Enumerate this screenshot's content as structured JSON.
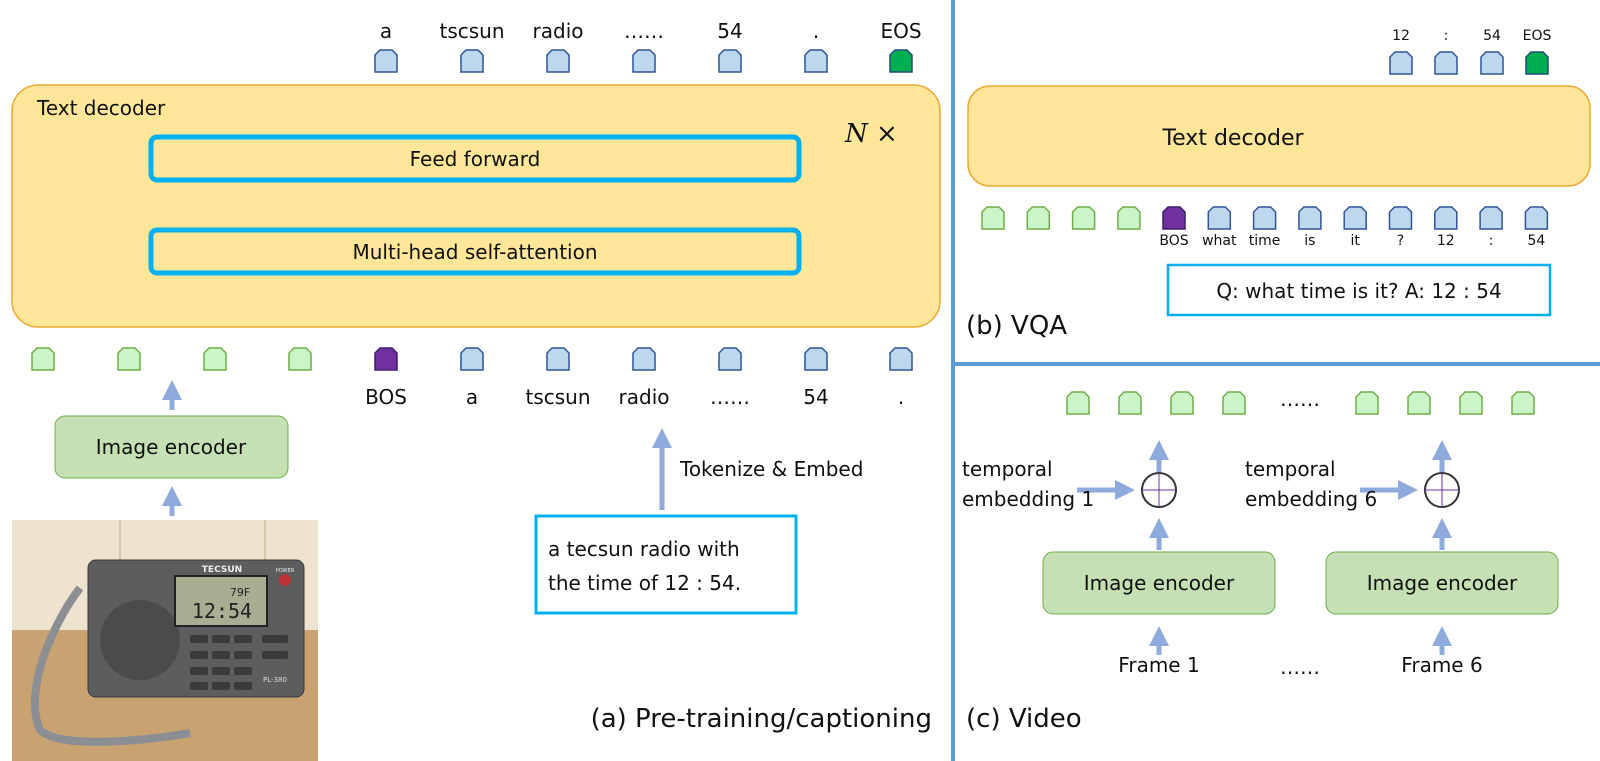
{
  "colors": {
    "decoder_fill": "#FFE699",
    "decoder_border": "#F0A830",
    "layer_border": "#00B0F0",
    "encoder_fill": "#C5E0B4",
    "encoder_border": "#70AD47",
    "arrow": "#8FAADC",
    "divider": "#5B9BD5",
    "text_token": "#BDD7EE",
    "image_token": "#C9F5C9",
    "bos_token": "#7030A0",
    "eos_token": "#00B050"
  },
  "panel_a": {
    "caption": "(a) Pre-training/captioning",
    "decoder_label": "Text decoder",
    "repeat_label": "N ×",
    "feed_forward": "Feed forward",
    "attention": "Multi-head self-attention",
    "image_encoder": "Image encoder",
    "tokenize_label": "Tokenize & Embed",
    "input_text_line1": "a tecsun radio with",
    "input_text_line2": "the time of 12 : 54.",
    "output_tokens": [
      "a",
      "tscsun",
      "radio",
      "……",
      "54",
      ".",
      "EOS"
    ],
    "input_tokens": [
      "BOS",
      "a",
      "tscsun",
      "radio",
      "……",
      "54",
      "."
    ],
    "photo": {
      "brand": "TECSUN",
      "display_time": "12:54",
      "display_temp": "79F",
      "model": "PL-380",
      "power_label": "POWER"
    }
  },
  "panel_b": {
    "caption": "(b) VQA",
    "decoder_label": "Text decoder",
    "output_tokens": [
      "12",
      ":",
      "54",
      "EOS"
    ],
    "input_tokens": [
      "BOS",
      "what",
      "time",
      "is",
      "it",
      "?",
      "12",
      ":",
      "54"
    ],
    "qa_text": "Q: what time is it? A: 12 : 54"
  },
  "panel_c": {
    "caption": "(c) Video",
    "ellipsis": "……",
    "frames": [
      {
        "temporal_line1": "temporal",
        "temporal_line2": "embedding 1",
        "encoder": "Image encoder",
        "frame": "Frame 1"
      },
      {
        "temporal_line1": "temporal",
        "temporal_line2": "embedding 6",
        "encoder": "Image encoder",
        "frame": "Frame 6"
      }
    ]
  }
}
